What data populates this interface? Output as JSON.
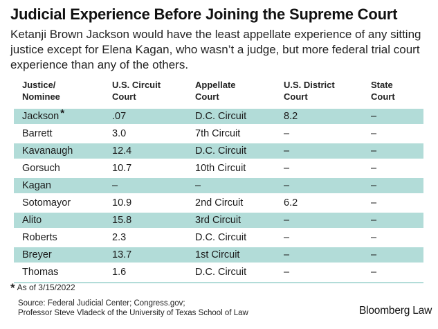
{
  "title": "Judicial Experience Before Joining the Supreme Court",
  "subtitle": "Ketanji Brown Jackson would have the least appellate experience of any sitting justice except for Elena Kagan, who wasn’t a judge, but more federal trial court experience than any of the others.",
  "colors": {
    "row_shade": "#b2dcd8"
  },
  "chart_data": {
    "type": "table",
    "title": "Judicial Experience Before Joining the Supreme Court",
    "columns": [
      "Justice/ Nominee",
      "U.S. Circuit Court",
      "Appellate Court",
      "U.S. District Court",
      "State Court"
    ],
    "rows": [
      {
        "name": "Jackson",
        "asterisk": "*",
        "circuit_years": ".07",
        "appellate_court": "D.C. Circuit",
        "district_years": "8.2",
        "state": "–",
        "shaded": true
      },
      {
        "name": "Barrett",
        "asterisk": "",
        "circuit_years": "3.0",
        "appellate_court": "7th Circuit",
        "district_years": "–",
        "state": "–",
        "shaded": false
      },
      {
        "name": "Kavanaugh",
        "asterisk": "",
        "circuit_years": "12.4",
        "appellate_court": "D.C. Circuit",
        "district_years": "–",
        "state": "–",
        "shaded": true
      },
      {
        "name": "Gorsuch",
        "asterisk": "",
        "circuit_years": "10.7",
        "appellate_court": "10th Circuit",
        "district_years": "–",
        "state": "–",
        "shaded": false
      },
      {
        "name": "Kagan",
        "asterisk": "",
        "circuit_years": "–",
        "appellate_court": "–",
        "district_years": "–",
        "state": "–",
        "shaded": true
      },
      {
        "name": "Sotomayor",
        "asterisk": "",
        "circuit_years": "10.9",
        "appellate_court": "2nd Circuit",
        "district_years": "6.2",
        "state": "–",
        "shaded": false
      },
      {
        "name": "Alito",
        "asterisk": "",
        "circuit_years": "15.8",
        "appellate_court": "3rd Circuit",
        "district_years": "–",
        "state": "–",
        "shaded": true
      },
      {
        "name": "Roberts",
        "asterisk": "",
        "circuit_years": "2.3",
        "appellate_court": "D.C. Circuit",
        "district_years": "–",
        "state": "–",
        "shaded": false
      },
      {
        "name": "Breyer",
        "asterisk": "",
        "circuit_years": "13.7",
        "appellate_court": "1st Circuit",
        "district_years": "–",
        "state": "–",
        "shaded": true
      },
      {
        "name": "Thomas",
        "asterisk": "",
        "circuit_years": "1.6",
        "appellate_court": "D.C. Circuit",
        "district_years": "–",
        "state": "–",
        "shaded": false
      }
    ]
  },
  "header": {
    "col0": [
      "Justice/",
      "Nominee"
    ],
    "col1": [
      "U.S. Circuit",
      "Court"
    ],
    "col2": [
      "Appellate",
      "Court"
    ],
    "col3": [
      "U.S. District",
      "Court"
    ],
    "col4": [
      "State",
      "Court"
    ]
  },
  "footnote": {
    "marker": "*",
    "text": "As of 3/15/2022"
  },
  "source": {
    "line1": "Source: Federal Judicial Center; Congress.gov;",
    "line2": "Professor Steve Vladeck of the University of Texas School of Law"
  },
  "brand": "Bloomberg Law"
}
